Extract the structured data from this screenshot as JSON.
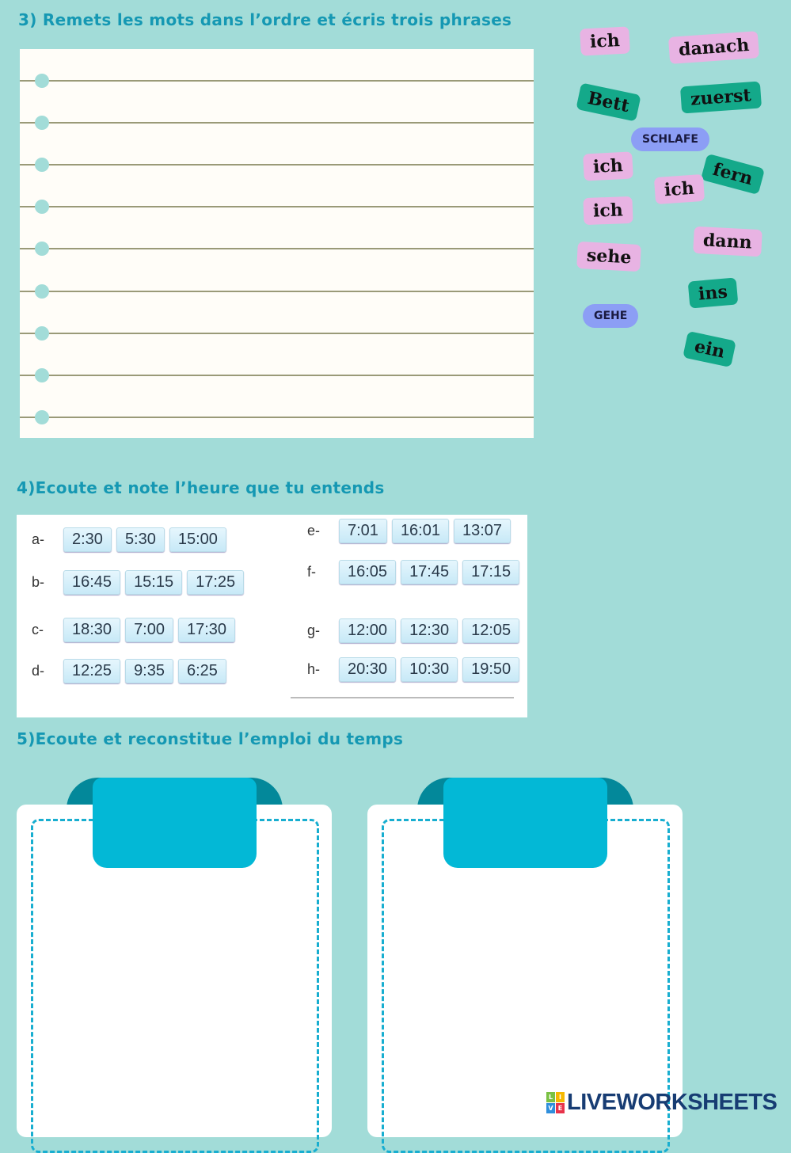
{
  "section3": {
    "title": "3) Remets les mots dans l’ordre et écris trois phrases",
    "line_count": 9,
    "words": [
      {
        "text": "ich",
        "color": "pink"
      },
      {
        "text": "danach",
        "color": "pink"
      },
      {
        "text": "Bett",
        "color": "green"
      },
      {
        "text": "zuerst",
        "color": "green"
      },
      {
        "text": "SCHLAFE",
        "color": "blue"
      },
      {
        "text": "ich",
        "color": "pink"
      },
      {
        "text": "fern",
        "color": "green"
      },
      {
        "text": "ich",
        "color": "pink"
      },
      {
        "text": "ich",
        "color": "pink"
      },
      {
        "text": "sehe",
        "color": "pink"
      },
      {
        "text": "dann",
        "color": "pink"
      },
      {
        "text": "ins",
        "color": "green"
      },
      {
        "text": "GEHE",
        "color": "blue"
      },
      {
        "text": "ein",
        "color": "green"
      }
    ]
  },
  "section4": {
    "title": "4)Ecoute et note l’heure que tu entends",
    "rows": [
      {
        "label": "a-",
        "options": [
          "2:30",
          "5:30",
          "15:00"
        ]
      },
      {
        "label": "b-",
        "options": [
          "16:45",
          "15:15",
          "17:25"
        ]
      },
      {
        "label": "c-",
        "options": [
          "18:30",
          "7:00",
          "17:30"
        ]
      },
      {
        "label": "d-",
        "options": [
          "12:25",
          "9:35",
          "6:25"
        ]
      },
      {
        "label": "e-",
        "options": [
          "7:01",
          "16:01",
          "13:07"
        ]
      },
      {
        "label": "f-",
        "options": [
          "16:05",
          "17:45",
          "17:15"
        ]
      },
      {
        "label": "g-",
        "options": [
          "12:00",
          "12:30",
          "12:05"
        ]
      },
      {
        "label": "h-",
        "options": [
          "20:30",
          "10:30",
          "19:50"
        ]
      }
    ]
  },
  "section5": {
    "title": "5)Ecoute et reconstitue l’emploi du temps"
  },
  "logo": {
    "text": "LIVEWORKSHEETS",
    "letters": [
      "L",
      "I",
      "V",
      "E"
    ]
  },
  "colors": {
    "background": "#a2dcd8",
    "title": "#1598b3",
    "pink": "#e8b3e3",
    "green": "#14a98a",
    "blue": "#8c9ef5",
    "ribbon": "#03b8d6"
  }
}
